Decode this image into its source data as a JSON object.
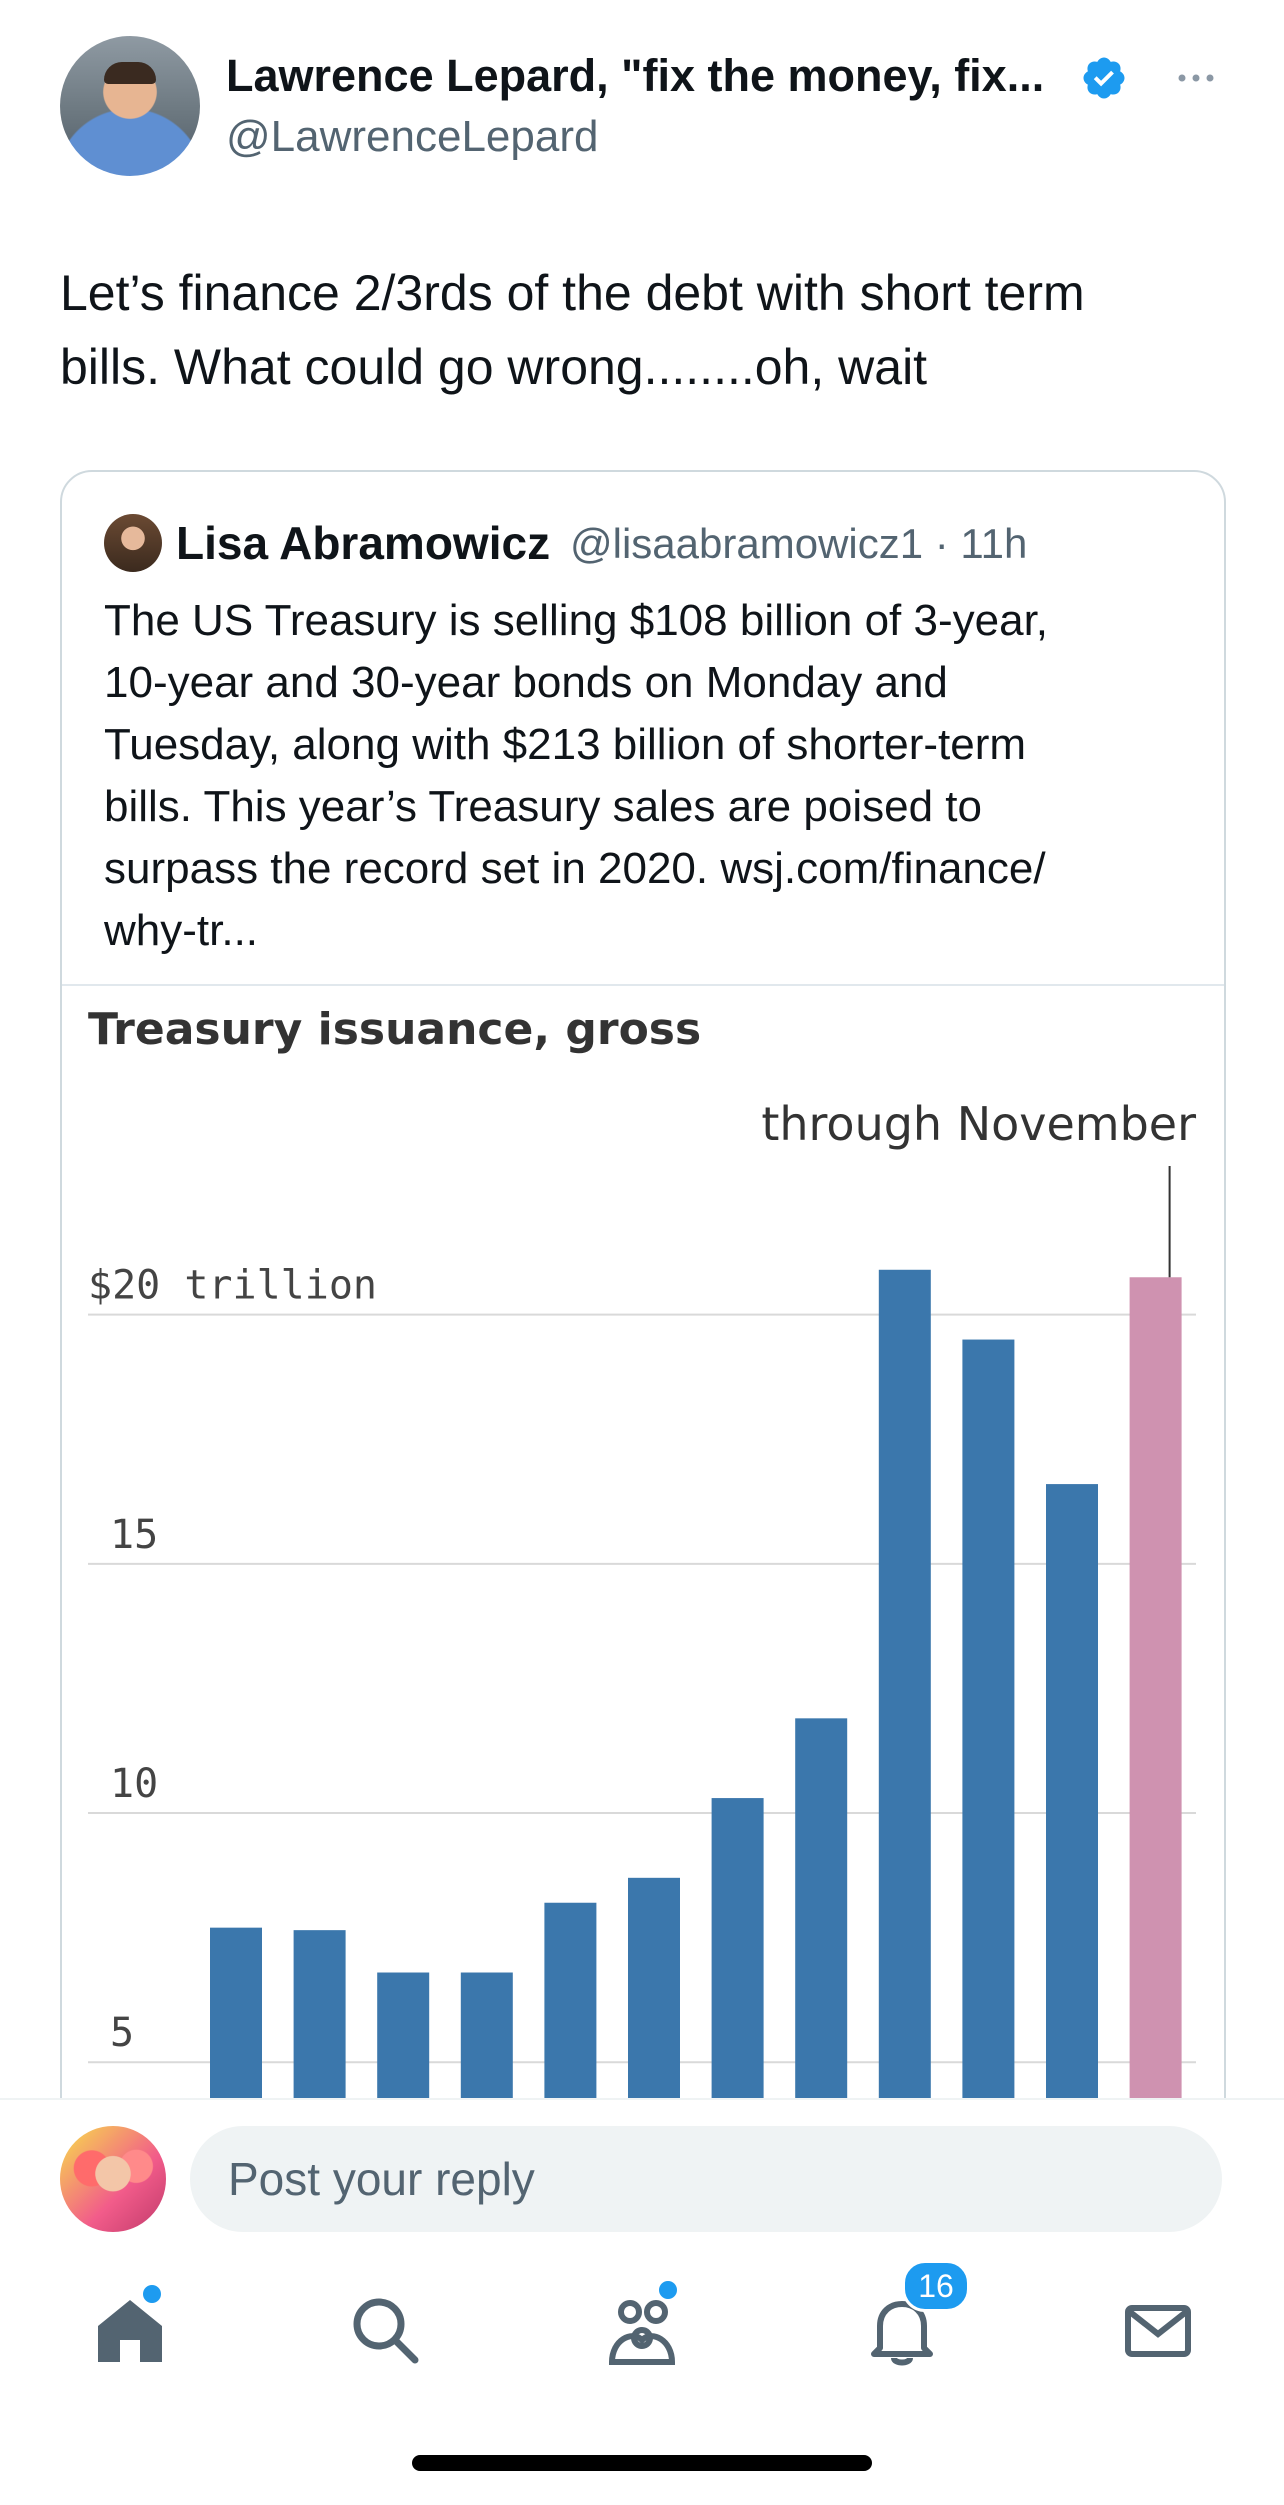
{
  "tweet": {
    "author_name": "Lawrence Lepard, \"fix the money, fix...",
    "author_handle": "@LawrenceLepard",
    "text": "Let’s finance 2/3rds of the debt with short term\nbills.  What could go wrong........oh, wait"
  },
  "quote": {
    "author_name": "Lisa Abramowicz",
    "meta": "@lisaabramowicz1 · 11h",
    "text": "The US Treasury is selling $108 billion of 3-year,\n10-year and 30-year bonds on Monday and\nTuesday, along with $213 billion of shorter-term\nbills. This year’s Treasury sales are poised to\nsurpass the record set in 2020. wsj.com/finance/\nwhy-tr..."
  },
  "chart_data": {
    "type": "bar",
    "title": "Treasury issuance, gross",
    "annotation": "through November",
    "ylabel": "",
    "y_tick_labels": [
      "$20 trillion",
      "15",
      "10",
      "5"
    ],
    "y_ticks": [
      20,
      15,
      10,
      5
    ],
    "ylim": [
      3.6,
      22.3
    ],
    "values": [
      7.7,
      7.65,
      6.8,
      6.8,
      8.2,
      8.7,
      10.3,
      11.9,
      20.9,
      19.5,
      16.6,
      20.75
    ],
    "highlight_index": 11,
    "colors": {
      "bar": "#3b77ac",
      "highlight": "#cf92b0",
      "grid": "#d9d9d9"
    }
  },
  "reply": {
    "placeholder": "Post your reply"
  },
  "nav": {
    "items": [
      "home",
      "search",
      "communities",
      "notifications",
      "messages"
    ],
    "notifications_count": "16"
  },
  "colors": {
    "accent": "#1d9bf0",
    "secondary_text": "#536471",
    "border": "#cfd9de"
  }
}
